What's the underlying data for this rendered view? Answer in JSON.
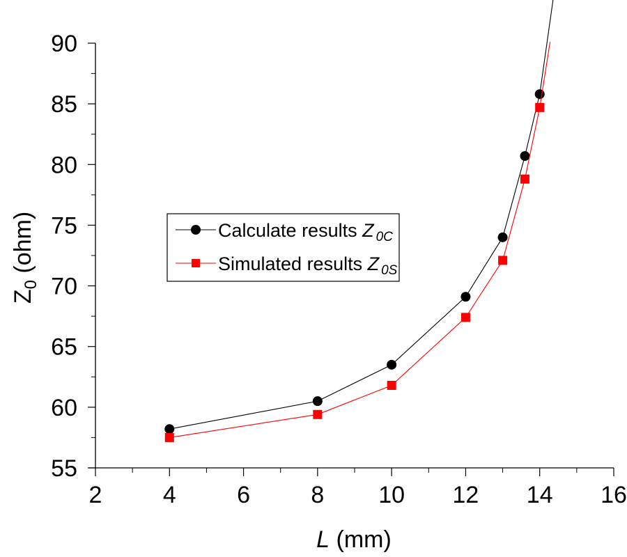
{
  "chart_data": {
    "type": "line",
    "title": "",
    "xlabel": {
      "italic": "L",
      "rest": " (mm)"
    },
    "ylabel": {
      "main": "Z",
      "sub": "0",
      "rest": "  (ohm)"
    },
    "xlim": [
      2,
      16
    ],
    "ylim": [
      55,
      90
    ],
    "xticks": [
      2,
      4,
      6,
      8,
      10,
      12,
      14,
      16
    ],
    "yticks": [
      55,
      60,
      65,
      70,
      75,
      80,
      85,
      90
    ],
    "x_minor_step": 1,
    "y_minor_step": 2.5,
    "grid": false,
    "legend_position": "center-left",
    "series": [
      {
        "name": "Calculate results Z0C",
        "label_text": "Calculate results ",
        "label_symbol": "Z",
        "label_sub": "0C",
        "color": "#000000",
        "marker": "circle",
        "x": [
          4,
          8,
          10,
          12,
          13,
          13.6,
          14
        ],
        "y": [
          58.2,
          60.5,
          63.5,
          69.1,
          74.0,
          80.7,
          85.8
        ],
        "extension": [
          14.45,
          95.5
        ]
      },
      {
        "name": "Simulated results Z0S",
        "label_text": "Simulated results ",
        "label_symbol": "Z",
        "label_sub": "0S",
        "color": "#ff0000",
        "marker": "square",
        "x": [
          4,
          8,
          10,
          12,
          13,
          13.6,
          14
        ],
        "y": [
          57.5,
          59.4,
          61.8,
          67.4,
          72.1,
          78.8,
          84.7
        ],
        "extension": [
          14.28,
          90.1
        ]
      }
    ]
  }
}
